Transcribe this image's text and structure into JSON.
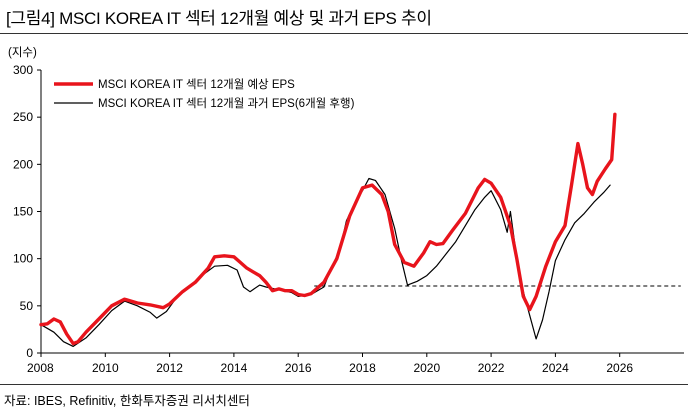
{
  "header": {
    "title": "[그림4]   MSCI KOREA IT 섹터 12개월 예상 및 과거 EPS 추이",
    "unit": "(지수)"
  },
  "footer": {
    "source": "자료: IBES, Refinitiv, 한화투자증권 리서치센터"
  },
  "colors": {
    "forecast": "#e8141c",
    "trailing": "#000000",
    "reference": "#000000"
  },
  "chart_data": {
    "type": "line",
    "title": "MSCI KOREA IT 섹터 12개월 예상 및 과거 EPS 추이",
    "ylabel": "(지수)",
    "xlabel": "",
    "xlim": [
      2008,
      2028
    ],
    "ylim": [
      0,
      300
    ],
    "x_ticks": [
      2008,
      2010,
      2012,
      2014,
      2016,
      2018,
      2020,
      2022,
      2024,
      2026
    ],
    "y_ticks": [
      0,
      50,
      100,
      150,
      200,
      250,
      300
    ],
    "legend_position": "top-left",
    "reference_line": {
      "y": 71,
      "x_start": 2016.5,
      "x_end": 2027.9,
      "style": "dashed"
    },
    "series": [
      {
        "name": "MSCI KOREA IT 섹터 12개월 예상 EPS",
        "color": "#e8141c",
        "points": [
          [
            2008.0,
            30
          ],
          [
            2008.2,
            31
          ],
          [
            2008.4,
            36
          ],
          [
            2008.6,
            33
          ],
          [
            2008.8,
            20
          ],
          [
            2009.0,
            10
          ],
          [
            2009.15,
            12
          ],
          [
            2009.4,
            22
          ],
          [
            2009.8,
            36
          ],
          [
            2010.2,
            50
          ],
          [
            2010.6,
            57
          ],
          [
            2011.0,
            53
          ],
          [
            2011.4,
            51
          ],
          [
            2011.8,
            48
          ],
          [
            2012.0,
            52
          ],
          [
            2012.4,
            65
          ],
          [
            2012.8,
            75
          ],
          [
            2013.2,
            90
          ],
          [
            2013.4,
            102
          ],
          [
            2013.7,
            103
          ],
          [
            2014.0,
            102
          ],
          [
            2014.2,
            96
          ],
          [
            2014.4,
            90
          ],
          [
            2014.6,
            86
          ],
          [
            2014.8,
            82
          ],
          [
            2015.0,
            75
          ],
          [
            2015.2,
            66
          ],
          [
            2015.4,
            68
          ],
          [
            2015.6,
            66
          ],
          [
            2015.8,
            66
          ],
          [
            2016.0,
            62
          ],
          [
            2016.2,
            61
          ],
          [
            2016.4,
            63
          ],
          [
            2016.8,
            75
          ],
          [
            2017.2,
            100
          ],
          [
            2017.6,
            145
          ],
          [
            2018.0,
            175
          ],
          [
            2018.3,
            178
          ],
          [
            2018.6,
            168
          ],
          [
            2018.8,
            150
          ],
          [
            2019.0,
            115
          ],
          [
            2019.3,
            96
          ],
          [
            2019.6,
            92
          ],
          [
            2019.9,
            106
          ],
          [
            2020.1,
            118
          ],
          [
            2020.3,
            115
          ],
          [
            2020.5,
            116
          ],
          [
            2020.8,
            130
          ],
          [
            2021.2,
            148
          ],
          [
            2021.6,
            175
          ],
          [
            2021.8,
            184
          ],
          [
            2022.0,
            180
          ],
          [
            2022.3,
            165
          ],
          [
            2022.6,
            135
          ],
          [
            2022.8,
            100
          ],
          [
            2023.0,
            60
          ],
          [
            2023.2,
            46
          ],
          [
            2023.4,
            60
          ],
          [
            2023.7,
            92
          ],
          [
            2024.0,
            118
          ],
          [
            2024.3,
            135
          ],
          [
            2024.5,
            178
          ],
          [
            2024.7,
            222
          ],
          [
            2024.85,
            200
          ],
          [
            2025.0,
            175
          ],
          [
            2025.15,
            168
          ],
          [
            2025.3,
            182
          ],
          [
            2025.55,
            195
          ],
          [
            2025.75,
            205
          ],
          [
            2025.85,
            253
          ]
        ]
      },
      {
        "name": "MSCI KOREA IT 섹터 12개월 과거 EPS(6개월 후행)",
        "color": "#000000",
        "points": [
          [
            2008.0,
            30
          ],
          [
            2008.4,
            22
          ],
          [
            2008.7,
            12
          ],
          [
            2009.0,
            7
          ],
          [
            2009.4,
            16
          ],
          [
            2009.8,
            30
          ],
          [
            2010.2,
            45
          ],
          [
            2010.6,
            55
          ],
          [
            2011.0,
            50
          ],
          [
            2011.4,
            43
          ],
          [
            2011.6,
            37
          ],
          [
            2011.9,
            44
          ],
          [
            2012.2,
            58
          ],
          [
            2012.6,
            70
          ],
          [
            2013.0,
            82
          ],
          [
            2013.4,
            92
          ],
          [
            2013.8,
            93
          ],
          [
            2014.1,
            88
          ],
          [
            2014.3,
            70
          ],
          [
            2014.5,
            65
          ],
          [
            2014.8,
            72
          ],
          [
            2015.0,
            70
          ],
          [
            2015.4,
            67
          ],
          [
            2015.8,
            64
          ],
          [
            2016.0,
            60
          ],
          [
            2016.4,
            62
          ],
          [
            2016.8,
            70
          ],
          [
            2017.0,
            88
          ],
          [
            2017.3,
            110
          ],
          [
            2017.5,
            140
          ],
          [
            2017.8,
            162
          ],
          [
            2018.0,
            172
          ],
          [
            2018.2,
            185
          ],
          [
            2018.4,
            183
          ],
          [
            2018.7,
            168
          ],
          [
            2019.0,
            132
          ],
          [
            2019.2,
            100
          ],
          [
            2019.4,
            72
          ],
          [
            2019.7,
            76
          ],
          [
            2020.0,
            82
          ],
          [
            2020.3,
            92
          ],
          [
            2020.6,
            105
          ],
          [
            2020.9,
            118
          ],
          [
            2021.2,
            135
          ],
          [
            2021.5,
            152
          ],
          [
            2021.8,
            165
          ],
          [
            2022.0,
            172
          ],
          [
            2022.3,
            152
          ],
          [
            2022.5,
            128
          ],
          [
            2022.6,
            150
          ],
          [
            2022.8,
            100
          ],
          [
            2023.0,
            65
          ],
          [
            2023.2,
            40
          ],
          [
            2023.4,
            15
          ],
          [
            2023.6,
            35
          ],
          [
            2023.8,
            65
          ],
          [
            2024.0,
            98
          ],
          [
            2024.3,
            120
          ],
          [
            2024.6,
            138
          ],
          [
            2024.9,
            148
          ],
          [
            2025.2,
            160
          ],
          [
            2025.5,
            170
          ],
          [
            2025.7,
            178
          ]
        ]
      }
    ]
  }
}
